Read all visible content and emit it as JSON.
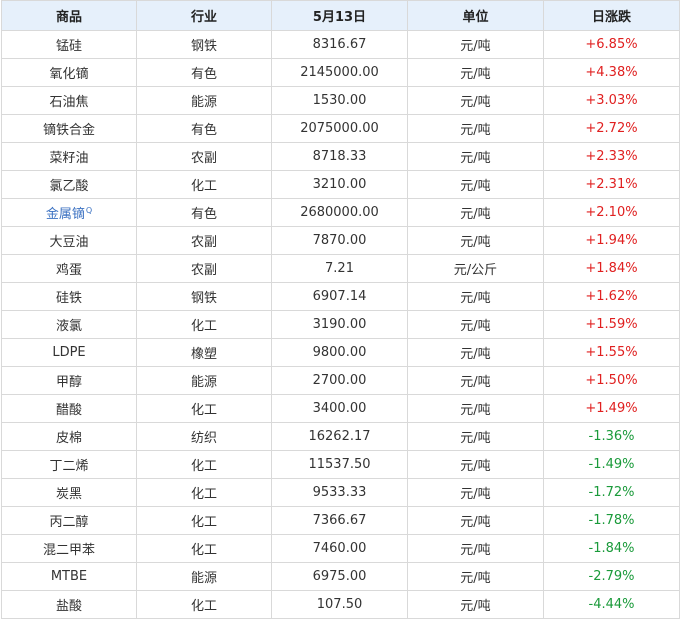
{
  "headers": [
    "商品",
    "行业",
    "5月13日",
    "单位",
    "日涨跌"
  ],
  "colors": {
    "up": "#e02020",
    "down": "#1a9a3a",
    "link": "#3c72c2",
    "header_bg": "#e6f0fb"
  },
  "rows": [
    {
      "name": "锰硅",
      "industry": "钢铁",
      "price": "8316.67",
      "unit": "元/吨",
      "change": "+6.85%",
      "dir": "up"
    },
    {
      "name": "氧化镝",
      "industry": "有色",
      "price": "2145000.00",
      "unit": "元/吨",
      "change": "+4.38%",
      "dir": "up"
    },
    {
      "name": "石油焦",
      "industry": "能源",
      "price": "1530.00",
      "unit": "元/吨",
      "change": "+3.03%",
      "dir": "up"
    },
    {
      "name": "镝铁合金",
      "industry": "有色",
      "price": "2075000.00",
      "unit": "元/吨",
      "change": "+2.72%",
      "dir": "up"
    },
    {
      "name": "菜籽油",
      "industry": "农副",
      "price": "8718.33",
      "unit": "元/吨",
      "change": "+2.33%",
      "dir": "up"
    },
    {
      "name": "氯乙酸",
      "industry": "化工",
      "price": "3210.00",
      "unit": "元/吨",
      "change": "+2.31%",
      "dir": "up"
    },
    {
      "name": "金属镝",
      "industry": "有色",
      "price": "2680000.00",
      "unit": "元/吨",
      "change": "+2.10%",
      "dir": "up",
      "link": true
    },
    {
      "name": "大豆油",
      "industry": "农副",
      "price": "7870.00",
      "unit": "元/吨",
      "change": "+1.94%",
      "dir": "up"
    },
    {
      "name": "鸡蛋",
      "industry": "农副",
      "price": "7.21",
      "unit": "元/公斤",
      "change": "+1.84%",
      "dir": "up"
    },
    {
      "name": "硅铁",
      "industry": "钢铁",
      "price": "6907.14",
      "unit": "元/吨",
      "change": "+1.62%",
      "dir": "up"
    },
    {
      "name": "液氯",
      "industry": "化工",
      "price": "3190.00",
      "unit": "元/吨",
      "change": "+1.59%",
      "dir": "up"
    },
    {
      "name": "LDPE",
      "industry": "橡塑",
      "price": "9800.00",
      "unit": "元/吨",
      "change": "+1.55%",
      "dir": "up"
    },
    {
      "name": "甲醇",
      "industry": "能源",
      "price": "2700.00",
      "unit": "元/吨",
      "change": "+1.50%",
      "dir": "up"
    },
    {
      "name": "醋酸",
      "industry": "化工",
      "price": "3400.00",
      "unit": "元/吨",
      "change": "+1.49%",
      "dir": "up"
    },
    {
      "name": "皮棉",
      "industry": "纺织",
      "price": "16262.17",
      "unit": "元/吨",
      "change": "-1.36%",
      "dir": "down"
    },
    {
      "name": "丁二烯",
      "industry": "化工",
      "price": "11537.50",
      "unit": "元/吨",
      "change": "-1.49%",
      "dir": "down"
    },
    {
      "name": "炭黑",
      "industry": "化工",
      "price": "9533.33",
      "unit": "元/吨",
      "change": "-1.72%",
      "dir": "down"
    },
    {
      "name": "丙二醇",
      "industry": "化工",
      "price": "7366.67",
      "unit": "元/吨",
      "change": "-1.78%",
      "dir": "down"
    },
    {
      "name": "混二甲苯",
      "industry": "化工",
      "price": "7460.00",
      "unit": "元/吨",
      "change": "-1.84%",
      "dir": "down"
    },
    {
      "name": "MTBE",
      "industry": "能源",
      "price": "6975.00",
      "unit": "元/吨",
      "change": "-2.79%",
      "dir": "down"
    },
    {
      "name": "盐酸",
      "industry": "化工",
      "price": "107.50",
      "unit": "元/吨",
      "change": "-4.44%",
      "dir": "down"
    }
  ]
}
